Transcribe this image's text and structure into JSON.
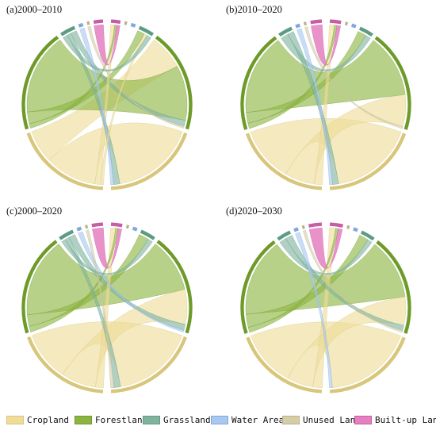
{
  "panels": [
    {
      "label": "(a)2000–2010",
      "weights": [
        1.0,
        1.05,
        0.16,
        0.05,
        0.03,
        0.1
      ],
      "flows": [
        [
          0,
          1,
          0.35
        ],
        [
          0,
          0,
          0.55
        ],
        [
          1,
          1,
          0.55
        ],
        [
          1,
          2,
          0.08
        ],
        [
          2,
          1,
          0.06
        ],
        [
          0,
          5,
          0.06
        ],
        [
          1,
          5,
          0.03
        ],
        [
          2,
          0,
          0.04
        ],
        [
          3,
          0,
          0.02
        ],
        [
          4,
          1,
          0.02
        ],
        [
          0,
          2,
          0.03
        ],
        [
          2,
          2,
          0.05
        ],
        [
          5,
          5,
          0.05
        ]
      ]
    },
    {
      "label": "(b)2010–2020",
      "weights": [
        1.0,
        1.05,
        0.15,
        0.05,
        0.03,
        0.12
      ],
      "flows": [
        [
          0,
          0,
          0.55
        ],
        [
          1,
          1,
          0.6
        ],
        [
          0,
          1,
          0.3
        ],
        [
          1,
          2,
          0.08
        ],
        [
          0,
          5,
          0.08
        ],
        [
          1,
          5,
          0.04
        ],
        [
          2,
          0,
          0.04
        ],
        [
          2,
          2,
          0.05
        ],
        [
          3,
          0,
          0.02
        ],
        [
          4,
          1,
          0.02
        ],
        [
          5,
          5,
          0.06
        ]
      ]
    },
    {
      "label": "(c)2000–2020",
      "weights": [
        1.0,
        1.05,
        0.16,
        0.05,
        0.03,
        0.12
      ],
      "flows": [
        [
          0,
          0,
          0.5
        ],
        [
          1,
          1,
          0.55
        ],
        [
          0,
          1,
          0.35
        ],
        [
          1,
          2,
          0.08
        ],
        [
          2,
          1,
          0.06
        ],
        [
          0,
          5,
          0.08
        ],
        [
          1,
          5,
          0.04
        ],
        [
          2,
          0,
          0.04
        ],
        [
          3,
          1,
          0.02
        ],
        [
          4,
          0,
          0.02
        ],
        [
          2,
          2,
          0.04
        ],
        [
          5,
          5,
          0.06
        ]
      ]
    },
    {
      "label": "(d)2020–2030",
      "weights": [
        1.0,
        1.05,
        0.15,
        0.05,
        0.03,
        0.14
      ],
      "flows": [
        [
          0,
          0,
          0.6
        ],
        [
          1,
          1,
          0.6
        ],
        [
          0,
          1,
          0.28
        ],
        [
          1,
          2,
          0.1
        ],
        [
          0,
          5,
          0.1
        ],
        [
          1,
          5,
          0.04
        ],
        [
          2,
          1,
          0.05
        ],
        [
          2,
          2,
          0.05
        ],
        [
          3,
          0,
          0.02
        ],
        [
          4,
          1,
          0.02
        ],
        [
          5,
          5,
          0.07
        ]
      ]
    }
  ],
  "categories": [
    {
      "name": "Cropland",
      "color": "#EEDC98",
      "stroke": "#D8C67A"
    },
    {
      "name": "Forestland",
      "color": "#8DB440",
      "stroke": "#6E9A2A"
    },
    {
      "name": "Grassland",
      "color": "#7FB39E",
      "stroke": "#5C9C82"
    },
    {
      "name": "Water Area",
      "color": "#A8C8F0",
      "stroke": "#7FA8DC"
    },
    {
      "name": "Unused Land",
      "color": "#D4CDA8",
      "stroke": "#B9B189"
    },
    {
      "name": "Built-up Land",
      "color": "#E57FC0",
      "stroke": "#C75EA5"
    }
  ]
}
